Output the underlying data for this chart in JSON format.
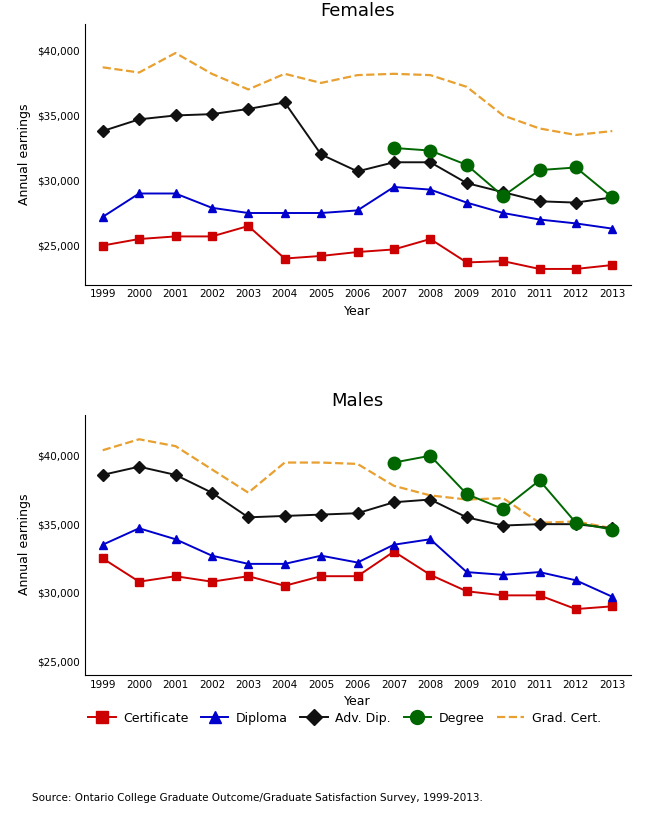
{
  "years": [
    1999,
    2000,
    2001,
    2002,
    2003,
    2004,
    2005,
    2006,
    2007,
    2008,
    2009,
    2010,
    2011,
    2012,
    2013
  ],
  "females": {
    "certificate": [
      25000,
      25500,
      25700,
      25700,
      26500,
      24000,
      24200,
      24500,
      24700,
      25500,
      23700,
      23800,
      23200,
      23200,
      23500
    ],
    "diploma": [
      27200,
      29000,
      29000,
      27900,
      27500,
      27500,
      27500,
      27700,
      29500,
      29300,
      28300,
      27500,
      27000,
      26700,
      26300
    ],
    "adv_dip": [
      33800,
      34700,
      35000,
      35100,
      35500,
      36000,
      32000,
      30700,
      31400,
      31400,
      29800,
      29100,
      28400,
      28300,
      28700
    ],
    "degree": [
      null,
      null,
      null,
      null,
      null,
      null,
      null,
      null,
      32500,
      32300,
      31200,
      28800,
      30800,
      31000,
      28700
    ],
    "grad_cert": [
      38700,
      38300,
      39800,
      38200,
      37000,
      38200,
      37500,
      38100,
      38200,
      38100,
      37200,
      35000,
      34000,
      33500,
      33800
    ]
  },
  "males": {
    "certificate": [
      32500,
      30800,
      31200,
      30800,
      31200,
      30500,
      31200,
      31200,
      33000,
      31300,
      30100,
      29800,
      29800,
      28800,
      29000
    ],
    "diploma": [
      33500,
      34700,
      33900,
      32700,
      32100,
      32100,
      32700,
      32200,
      33500,
      33900,
      31500,
      31300,
      31500,
      30900,
      29700
    ],
    "adv_dip": [
      38600,
      39200,
      38600,
      37300,
      35500,
      35600,
      35700,
      35800,
      36600,
      36800,
      35500,
      34900,
      35000,
      35000,
      34700
    ],
    "degree": [
      null,
      null,
      null,
      null,
      null,
      null,
      null,
      null,
      39500,
      40000,
      37200,
      36100,
      38200,
      35100,
      34600
    ],
    "grad_cert": [
      40400,
      41200,
      40700,
      39000,
      37300,
      39500,
      39500,
      39400,
      37800,
      37100,
      36800,
      36900,
      35100,
      35200,
      34700
    ]
  },
  "colors": {
    "certificate": "#cc0000",
    "diploma": "#0000cc",
    "adv_dip": "#111111",
    "degree": "#006600",
    "grad_cert": "#e8a030"
  },
  "title_females": "Females",
  "title_males": "Males",
  "ylabel": "Annual earnings",
  "xlabel": "Year",
  "ylim_females": [
    22000,
    42000
  ],
  "ylim_males": [
    24000,
    43000
  ],
  "yticks_females": [
    25000,
    30000,
    35000,
    40000
  ],
  "yticks_males": [
    25000,
    30000,
    35000,
    40000
  ],
  "legend_labels": [
    "Certificate",
    "Diploma",
    "Adv. Dip.",
    "Degree",
    "Grad. Cert."
  ],
  "source_text": "Source: Ontario College Graduate Outcome/Graduate Satisfaction Survey, 1999-2013."
}
